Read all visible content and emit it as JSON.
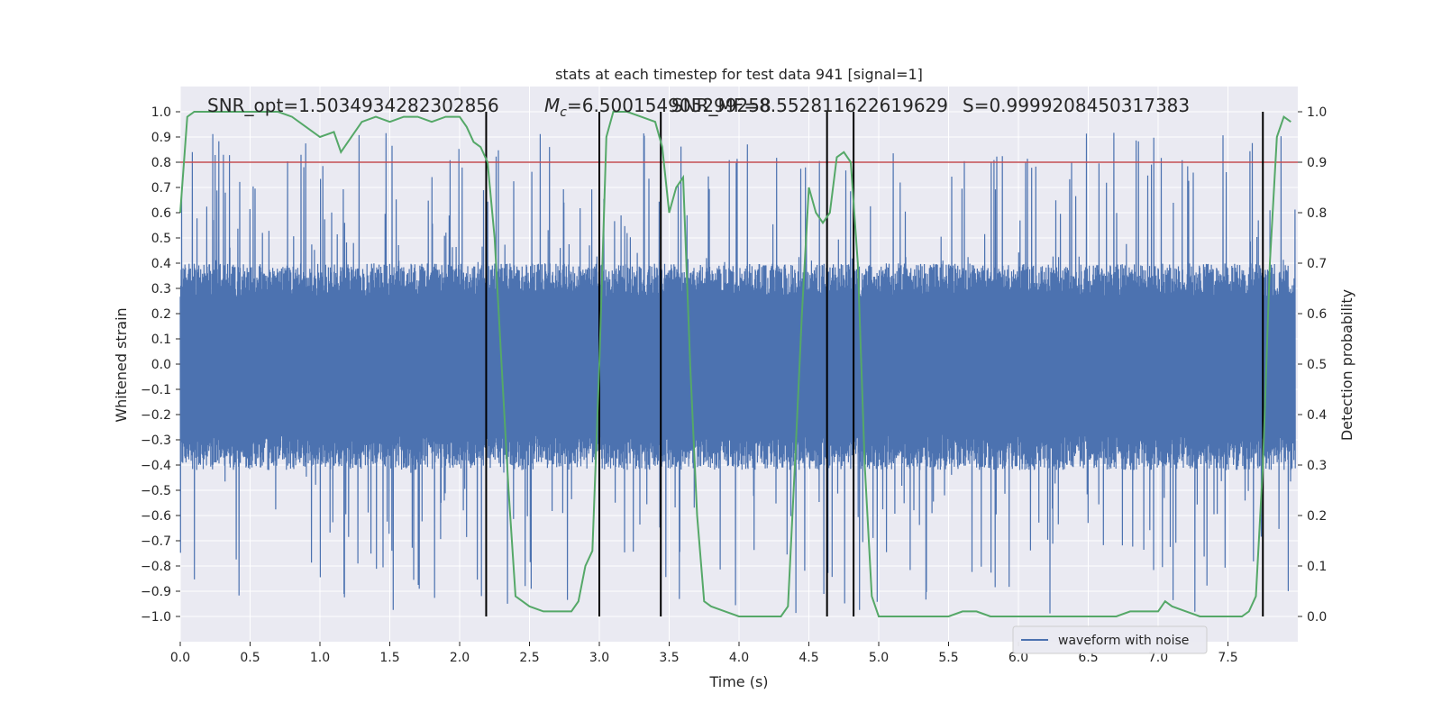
{
  "chart_data": {
    "type": "line",
    "title": "stats at each timestep for test data 941 [signal=1]",
    "xlabel": "Time (s)",
    "ylabel": "Whitened strain",
    "y2label": "Detection probability",
    "xlim": [
      0.0,
      8.0
    ],
    "ylim": [
      -1.1,
      1.1
    ],
    "y2lim": [
      -0.05,
      1.05
    ],
    "x_ticks": [
      0.0,
      0.5,
      1.0,
      1.5,
      2.0,
      2.5,
      3.0,
      3.5,
      4.0,
      4.5,
      5.0,
      5.5,
      6.0,
      6.5,
      7.0,
      7.5
    ],
    "x_tick_labels": [
      "0.0",
      "0.5",
      "1.0",
      "1.5",
      "2.0",
      "2.5",
      "3.0",
      "3.5",
      "4.0",
      "4.5",
      "5.0",
      "5.5",
      "6.0",
      "6.5",
      "7.0",
      "7.5"
    ],
    "y_ticks": [
      -1.0,
      -0.9,
      -0.8,
      -0.7,
      -0.6,
      -0.5,
      -0.4,
      -0.3,
      -0.2,
      -0.1,
      0.0,
      0.1,
      0.2,
      0.3,
      0.4,
      0.5,
      0.6,
      0.7,
      0.8,
      0.9,
      1.0
    ],
    "y_tick_labels": [
      "−1.0",
      "−0.9",
      "−0.8",
      "−0.7",
      "−0.6",
      "−0.5",
      "−0.4",
      "−0.3",
      "−0.2",
      "−0.1",
      "0.0",
      "0.1",
      "0.2",
      "0.3",
      "0.4",
      "0.5",
      "0.6",
      "0.7",
      "0.8",
      "0.9",
      "1.0"
    ],
    "y2_ticks": [
      0.0,
      0.1,
      0.2,
      0.3,
      0.4,
      0.5,
      0.6,
      0.7,
      0.8,
      0.9,
      1.0
    ],
    "y2_tick_labels": [
      "0.0",
      "0.1",
      "0.2",
      "0.3",
      "0.4",
      "0.5",
      "0.6",
      "0.7",
      "0.8",
      "0.9",
      "1.0"
    ],
    "grid": true,
    "legend": {
      "placement": "lower-right",
      "entries": [
        "waveform with noise"
      ]
    },
    "annotations": [
      "SNR_opt=1.5034934282302856",
      "M_c=6.500154905299258",
      "SNR_MF=8.552811622619629",
      "S=0.9999208450317383"
    ],
    "threshold": {
      "y2": 0.9,
      "color": "#c44e52"
    },
    "vlines_x": [
      2.19,
      3.0,
      3.44,
      4.63,
      4.82,
      7.75
    ],
    "series": [
      {
        "name": "waveform with noise",
        "color": "#4c72b0",
        "envelope": {
          "upper_typical": 0.38,
          "lower_typical": -0.4,
          "peak_max": 0.93,
          "trough_min": -0.99
        }
      },
      {
        "color": "#55a868",
        "axis": "y2",
        "x": [
          0.0,
          0.05,
          0.1,
          0.2,
          0.3,
          0.4,
          0.5,
          0.6,
          0.7,
          0.8,
          0.9,
          1.0,
          1.1,
          1.15,
          1.2,
          1.3,
          1.4,
          1.5,
          1.6,
          1.7,
          1.8,
          1.9,
          2.0,
          2.05,
          2.1,
          2.15,
          2.2,
          2.25,
          2.3,
          2.35,
          2.4,
          2.5,
          2.6,
          2.7,
          2.8,
          2.85,
          2.9,
          2.95,
          3.0,
          3.05,
          3.1,
          3.2,
          3.3,
          3.4,
          3.45,
          3.5,
          3.55,
          3.6,
          3.65,
          3.7,
          3.75,
          3.8,
          3.9,
          4.0,
          4.1,
          4.2,
          4.3,
          4.35,
          4.4,
          4.45,
          4.5,
          4.55,
          4.6,
          4.65,
          4.7,
          4.75,
          4.8,
          4.85,
          4.9,
          4.95,
          5.0,
          5.1,
          5.2,
          5.3,
          5.5,
          5.6,
          5.7,
          5.8,
          6.0,
          6.5,
          6.7,
          6.8,
          6.9,
          7.0,
          7.05,
          7.1,
          7.2,
          7.3,
          7.5,
          7.6,
          7.65,
          7.7,
          7.75,
          7.8,
          7.85,
          7.9,
          7.95
        ],
        "values": [
          0.8,
          0.99,
          1.0,
          1.0,
          1.0,
          1.0,
          1.0,
          1.0,
          1.0,
          0.99,
          0.97,
          0.95,
          0.96,
          0.92,
          0.94,
          0.98,
          0.99,
          0.98,
          0.99,
          0.99,
          0.98,
          0.99,
          0.99,
          0.97,
          0.94,
          0.93,
          0.9,
          0.75,
          0.5,
          0.25,
          0.04,
          0.02,
          0.01,
          0.01,
          0.01,
          0.03,
          0.1,
          0.13,
          0.5,
          0.95,
          1.0,
          1.0,
          0.99,
          0.98,
          0.93,
          0.8,
          0.85,
          0.87,
          0.5,
          0.2,
          0.03,
          0.02,
          0.01,
          0.0,
          0.0,
          0.0,
          0.0,
          0.02,
          0.3,
          0.6,
          0.85,
          0.8,
          0.78,
          0.8,
          0.91,
          0.92,
          0.9,
          0.7,
          0.3,
          0.04,
          0.0,
          0.0,
          0.0,
          0.0,
          0.0,
          0.01,
          0.01,
          0.0,
          0.0,
          0.0,
          0.0,
          0.01,
          0.01,
          0.01,
          0.03,
          0.02,
          0.01,
          0.0,
          0.0,
          0.0,
          0.01,
          0.04,
          0.3,
          0.7,
          0.95,
          0.99,
          0.98
        ]
      }
    ]
  }
}
